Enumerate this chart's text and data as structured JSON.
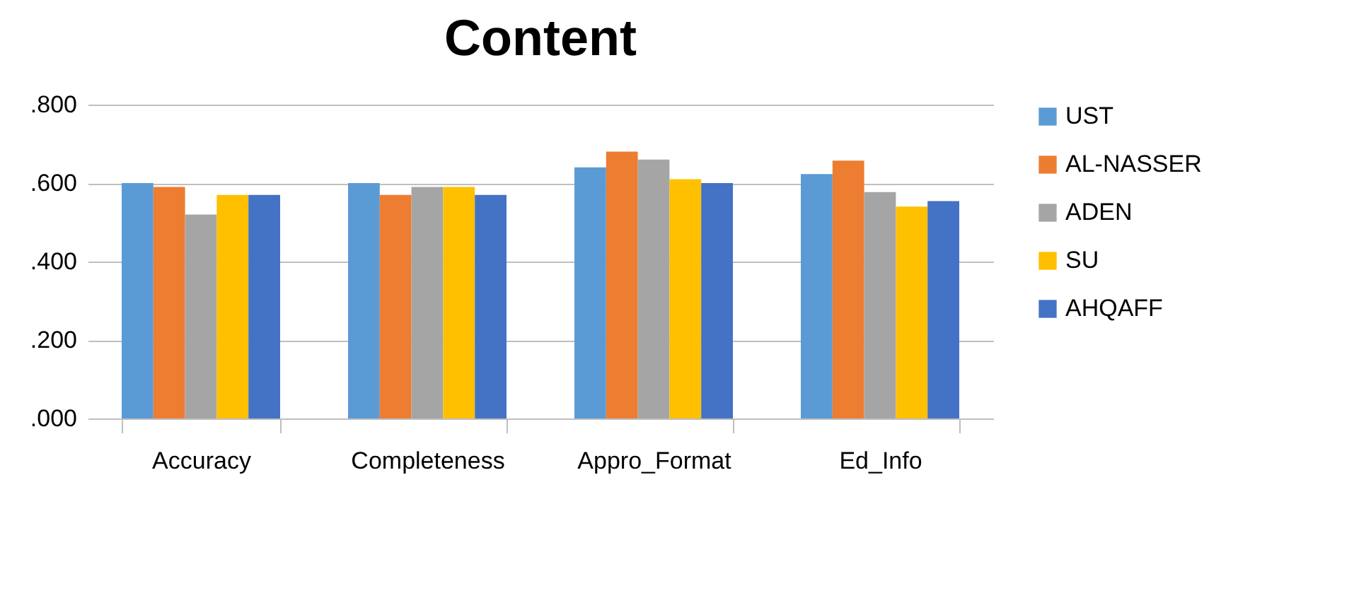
{
  "chart_data": {
    "type": "bar",
    "title": "Content",
    "categories": [
      "Accuracy",
      "Completeness",
      "Appro_Format",
      "Ed_Info"
    ],
    "series": [
      {
        "name": "UST",
        "color": "#5b9bd5",
        "values": [
          0.6,
          0.6,
          0.64,
          0.623
        ]
      },
      {
        "name": "AL-NASSER",
        "color": "#ed7d31",
        "values": [
          0.59,
          0.57,
          0.68,
          0.657
        ]
      },
      {
        "name": "ADEN",
        "color": "#a5a5a5",
        "values": [
          0.52,
          0.59,
          0.66,
          0.577
        ]
      },
      {
        "name": "SU",
        "color": "#ffc000",
        "values": [
          0.57,
          0.59,
          0.61,
          0.54
        ]
      },
      {
        "name": "AHQAFF",
        "color": "#4472c4",
        "values": [
          0.57,
          0.57,
          0.6,
          0.554
        ]
      }
    ],
    "ylim": [
      0,
      0.8
    ],
    "yticks": [
      {
        "value": 0,
        "label": ".000"
      },
      {
        "value": 0.2,
        "label": ".200"
      },
      {
        "value": 0.4,
        "label": ".400"
      },
      {
        "value": 0.6,
        "label": ".600"
      },
      {
        "value": 0.8,
        "label": ".800"
      }
    ],
    "grid": "y",
    "legend": "right"
  }
}
